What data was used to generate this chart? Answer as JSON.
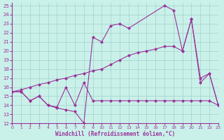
{
  "xlabel": "Windchill (Refroidissement éolien,°C)",
  "xlim": [
    0,
    23
  ],
  "ylim": [
    12,
    25.3
  ],
  "xtick_vals": [
    0,
    1,
    2,
    3,
    4,
    5,
    6,
    7,
    8,
    9,
    10,
    11,
    12,
    13,
    14,
    15,
    16,
    17,
    18,
    19,
    20,
    21,
    22,
    23
  ],
  "ytick_vals": [
    12,
    13,
    14,
    15,
    16,
    17,
    18,
    19,
    20,
    21,
    22,
    23,
    24,
    25
  ],
  "bg_color": "#caf0ea",
  "line_color": "#993399",
  "grid_color": "#9dd4c8",
  "curve1_x": [
    0,
    1,
    2,
    3,
    4,
    5,
    6,
    7,
    8,
    9,
    10,
    11,
    12,
    13,
    17,
    18,
    19,
    20,
    21,
    22,
    23
  ],
  "curve1_y": [
    15.5,
    15.5,
    14.5,
    15.0,
    14.0,
    13.7,
    13.5,
    13.3,
    12.0,
    21.5,
    21.0,
    22.8,
    23.0,
    22.5,
    25.0,
    24.5,
    20.0,
    23.5,
    16.5,
    17.5,
    14.0
  ],
  "curve2_x": [
    0,
    1,
    2,
    3,
    4,
    5,
    6,
    7,
    8,
    9,
    10,
    11,
    12,
    13,
    14,
    15,
    16,
    17,
    18,
    19,
    20,
    21,
    22,
    23
  ],
  "curve2_y": [
    15.5,
    15.7,
    16.0,
    16.3,
    16.5,
    16.8,
    17.0,
    17.3,
    17.5,
    17.8,
    18.0,
    18.5,
    19.0,
    19.5,
    19.8,
    20.0,
    20.2,
    20.5,
    20.5,
    20.0,
    23.5,
    17.0,
    17.5,
    14.0
  ],
  "curve3_x": [
    0,
    1,
    2,
    3,
    4,
    5,
    6,
    7,
    8,
    9,
    10,
    11,
    12,
    13,
    14,
    15,
    16,
    17,
    18,
    19,
    20,
    21,
    22,
    23
  ],
  "curve3_y": [
    15.5,
    15.5,
    14.5,
    15.0,
    14.0,
    13.8,
    16.0,
    14.0,
    16.5,
    14.5,
    14.5,
    14.5,
    14.5,
    14.5,
    14.5,
    14.5,
    14.5,
    14.5,
    14.5,
    14.5,
    14.5,
    14.5,
    14.5,
    14.0
  ]
}
